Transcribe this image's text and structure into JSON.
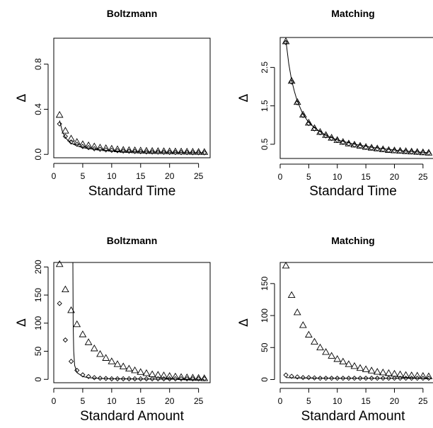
{
  "chart_data": [
    {
      "type": "scatter",
      "title": "Boltzmann",
      "xlabel": "Standard Time",
      "ylabel": "Δ",
      "xlim": [
        0,
        27
      ],
      "ylim": [
        -0.03,
        1.03
      ],
      "xticks": [
        "0",
        "5",
        "10",
        "15",
        "20",
        "25"
      ],
      "yticks": [
        "0.0",
        "0.4",
        "0.8"
      ],
      "ytick_values": [
        0,
        0.4,
        0.8
      ],
      "series": [
        {
          "marker": "triangle",
          "x": [
            1,
            2,
            3,
            4,
            5,
            6,
            7,
            8,
            9,
            10,
            11,
            12,
            13,
            14,
            15,
            16,
            17,
            18,
            19,
            20,
            21,
            22,
            23,
            24,
            25,
            26
          ],
          "y": [
            0.35,
            0.21,
            0.14,
            0.11,
            0.09,
            0.08,
            0.07,
            0.06,
            0.055,
            0.05,
            0.045,
            0.04,
            0.038,
            0.036,
            0.034,
            0.032,
            0.03,
            0.029,
            0.028,
            0.027,
            0.026,
            0.025,
            0.024,
            0.023,
            0.022,
            0.021
          ]
        },
        {
          "marker": "diamond",
          "x": [
            1,
            2,
            3,
            4,
            5,
            6,
            7,
            8,
            9,
            10,
            11,
            12,
            13,
            14,
            15,
            16,
            17,
            18,
            19,
            20,
            21,
            22,
            23,
            24,
            25,
            26
          ],
          "y": [
            0.27,
            0.16,
            0.11,
            0.09,
            0.07,
            0.06,
            0.05,
            0.045,
            0.04,
            0.036,
            0.033,
            0.03,
            0.028,
            0.026,
            0.024,
            0.022,
            0.021,
            0.02,
            0.019,
            0.018,
            0.017,
            0.016,
            0.016,
            0.015,
            0.015,
            0.014
          ]
        },
        {
          "marker": "line",
          "x": [
            1,
            1.5,
            2,
            2.5,
            3,
            4,
            5,
            6,
            8,
            10,
            13,
            16,
            20,
            23,
            26
          ],
          "y": [
            0.3,
            0.2,
            0.15,
            0.12,
            0.1,
            0.075,
            0.06,
            0.05,
            0.04,
            0.032,
            0.026,
            0.022,
            0.018,
            0.016,
            0.014
          ]
        }
      ]
    },
    {
      "type": "scatter",
      "title": "Matching",
      "xlabel": "Standard Time",
      "ylabel": "Δ",
      "xlim": [
        0,
        27
      ],
      "ylim": [
        0.13,
        3.28
      ],
      "xticks": [
        "0",
        "5",
        "10",
        "15",
        "20",
        "25"
      ],
      "yticks": [
        "0.5",
        "1.5",
        "2.5"
      ],
      "ytick_values": [
        0.5,
        1.5,
        2.5
      ],
      "series": [
        {
          "marker": "triangle",
          "x": [
            1,
            2,
            3,
            4,
            5,
            6,
            7,
            8,
            9,
            10,
            11,
            12,
            13,
            14,
            15,
            16,
            17,
            18,
            19,
            20,
            21,
            22,
            23,
            24,
            25,
            26
          ],
          "y": [
            3.18,
            2.15,
            1.6,
            1.27,
            1.06,
            0.92,
            0.82,
            0.74,
            0.67,
            0.61,
            0.56,
            0.52,
            0.49,
            0.46,
            0.43,
            0.41,
            0.39,
            0.37,
            0.35,
            0.34,
            0.33,
            0.32,
            0.31,
            0.3,
            0.29,
            0.28
          ]
        },
        {
          "marker": "diamond",
          "x": [
            1,
            2,
            3,
            4,
            5,
            6,
            7,
            8,
            9,
            10,
            11,
            12,
            13,
            14,
            15,
            16,
            17,
            18,
            19,
            20,
            21,
            22,
            23,
            24,
            25,
            26
          ],
          "y": [
            3.15,
            2.12,
            1.58,
            1.25,
            1.04,
            0.9,
            0.8,
            0.72,
            0.65,
            0.6,
            0.55,
            0.51,
            0.48,
            0.45,
            0.42,
            0.4,
            0.38,
            0.36,
            0.34,
            0.33,
            0.32,
            0.31,
            0.3,
            0.29,
            0.28,
            0.27
          ]
        },
        {
          "marker": "line",
          "x": [
            1,
            1.5,
            2,
            2.5,
            3,
            4,
            5,
            6,
            8,
            10,
            13,
            16,
            20,
            23,
            26
          ],
          "y": [
            3.2,
            2.6,
            2.17,
            1.87,
            1.62,
            1.28,
            1.07,
            0.93,
            0.73,
            0.61,
            0.5,
            0.42,
            0.35,
            0.31,
            0.28
          ]
        }
      ]
    },
    {
      "type": "scatter",
      "title": "Boltzmann",
      "xlabel": "Standard Amount",
      "ylabel": "Δ",
      "xlim": [
        0,
        27
      ],
      "ylim": [
        -6,
        208
      ],
      "xticks": [
        "0",
        "5",
        "10",
        "15",
        "20",
        "25"
      ],
      "yticks": [
        "0",
        "50",
        "100",
        "150",
        "200"
      ],
      "ytick_values": [
        0,
        50,
        100,
        150,
        200
      ],
      "series": [
        {
          "marker": "triangle",
          "x": [
            1,
            2,
            3,
            4,
            5,
            6,
            7,
            8,
            9,
            10,
            11,
            12,
            13,
            14,
            15,
            16,
            17,
            18,
            19,
            20,
            21,
            22,
            23,
            24,
            25,
            26
          ],
          "y": [
            205,
            160,
            123,
            98,
            80,
            66,
            55,
            45,
            38,
            32,
            27,
            23,
            19,
            16,
            13,
            11,
            9,
            8,
            7,
            6,
            5,
            4,
            3.5,
            3,
            2.5,
            2
          ]
        },
        {
          "marker": "diamond",
          "x": [
            1,
            2,
            3,
            4,
            5,
            6,
            7,
            8,
            9,
            10,
            11,
            12,
            13,
            14,
            15,
            16,
            17,
            18,
            19,
            20,
            21,
            22,
            23,
            24,
            25,
            26
          ],
          "y": [
            135,
            70,
            32,
            16,
            8,
            5,
            3,
            2,
            1.5,
            1,
            1,
            1,
            1,
            1,
            1,
            1,
            1,
            1,
            1,
            1,
            1,
            1,
            1,
            1,
            1,
            1
          ]
        },
        {
          "marker": "line",
          "x": [
            3.3,
            3.35,
            3.45,
            3.6,
            4,
            5,
            6,
            8,
            10,
            15,
            20,
            26
          ],
          "y": [
            208,
            100,
            50,
            25,
            12,
            5,
            3,
            1.5,
            1,
            0.5,
            0.3,
            0.2
          ]
        }
      ]
    },
    {
      "type": "scatter",
      "title": "Matching",
      "xlabel": "Standard Amount",
      "ylabel": "Δ",
      "xlim": [
        0,
        27
      ],
      "ylim": [
        -5,
        183
      ],
      "xticks": [
        "0",
        "5",
        "10",
        "15",
        "20",
        "25"
      ],
      "yticks": [
        "0",
        "50",
        "100",
        "150"
      ],
      "ytick_values": [
        0,
        50,
        100,
        150
      ],
      "series": [
        {
          "marker": "triangle",
          "x": [
            1,
            2,
            3,
            4,
            5,
            6,
            7,
            8,
            9,
            10,
            11,
            12,
            13,
            14,
            15,
            16,
            17,
            18,
            19,
            20,
            21,
            22,
            23,
            24,
            25,
            26
          ],
          "y": [
            178,
            132,
            105,
            85,
            70,
            59,
            50,
            43,
            37,
            32,
            28,
            24,
            21,
            18,
            16,
            14,
            12,
            11,
            10,
            9,
            8,
            7,
            6.5,
            6,
            5.5,
            5
          ]
        },
        {
          "marker": "diamond",
          "x": [
            1,
            2,
            3,
            4,
            5,
            6,
            7,
            8,
            9,
            10,
            11,
            12,
            13,
            14,
            15,
            16,
            17,
            18,
            19,
            20,
            21,
            22,
            23,
            24,
            25,
            26
          ],
          "y": [
            7,
            5,
            4,
            3,
            3,
            2.5,
            2,
            2,
            2,
            2,
            2,
            2,
            2,
            2,
            2,
            2,
            2,
            2,
            2,
            2,
            2,
            2,
            2,
            2,
            2,
            2
          ]
        },
        {
          "marker": "line",
          "x": [
            1,
            3,
            6,
            10,
            15,
            20,
            26
          ],
          "y": [
            3,
            2.5,
            2.2,
            2,
            2,
            2,
            2
          ]
        }
      ]
    }
  ]
}
